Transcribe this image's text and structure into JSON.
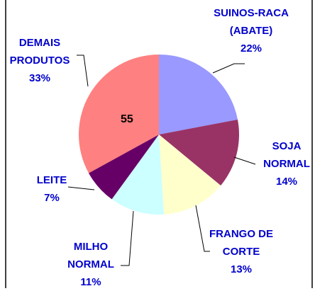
{
  "chart_data": {
    "type": "pie",
    "categories": [
      "SUINOS-RACA (ABATE)",
      "SOJA NORMAL",
      "FRANGO DE CORTE",
      "MILHO NORMAL",
      "LEITE",
      "DEMAIS PRODUTOS"
    ],
    "values": [
      22,
      14,
      13,
      11,
      7,
      33
    ],
    "value_labels": [
      "22%",
      "14%",
      "13%",
      "11%",
      "7%",
      "33%"
    ],
    "colors": [
      "#9999ff",
      "#993366",
      "#ffffcc",
      "#ccffff",
      "#660066",
      "#ff8080"
    ],
    "annotation": "55"
  }
}
